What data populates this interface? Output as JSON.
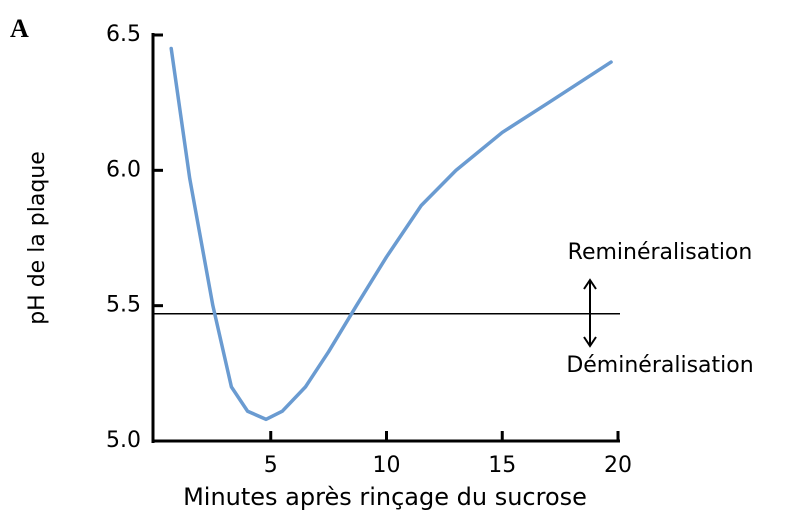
{
  "chart_data": {
    "type": "line",
    "panel_label": "A",
    "xlabel": "Minutes après rinçage du sucrose",
    "ylabel": "pH de la plaque",
    "x": [
      0.7,
      1.5,
      2.5,
      3.3,
      4,
      4.8,
      5.5,
      6.5,
      7.5,
      8.7,
      10,
      11.5,
      13,
      15,
      17,
      19.7
    ],
    "series": [
      {
        "name": "pH",
        "color": "#6a9bd1",
        "values": [
          6.45,
          5.97,
          5.5,
          5.2,
          5.11,
          5.08,
          5.11,
          5.2,
          5.33,
          5.5,
          5.68,
          5.87,
          6.0,
          6.14,
          6.25,
          6.4
        ]
      }
    ],
    "xlim": [
      0,
      20
    ],
    "xticks": [
      5,
      10,
      15,
      20
    ],
    "ylim": [
      5.0,
      6.5
    ],
    "yticks": [
      {
        "value": 5.0,
        "label": "5.0"
      },
      {
        "value": 5.5,
        "label": "5.5"
      },
      {
        "value": 6.0,
        "label": "6.0"
      },
      {
        "value": 6.5,
        "label": "6.5"
      }
    ],
    "threshold": 5.47,
    "annotations": [
      "Reminéralisation",
      "Déminéralisation"
    ]
  }
}
